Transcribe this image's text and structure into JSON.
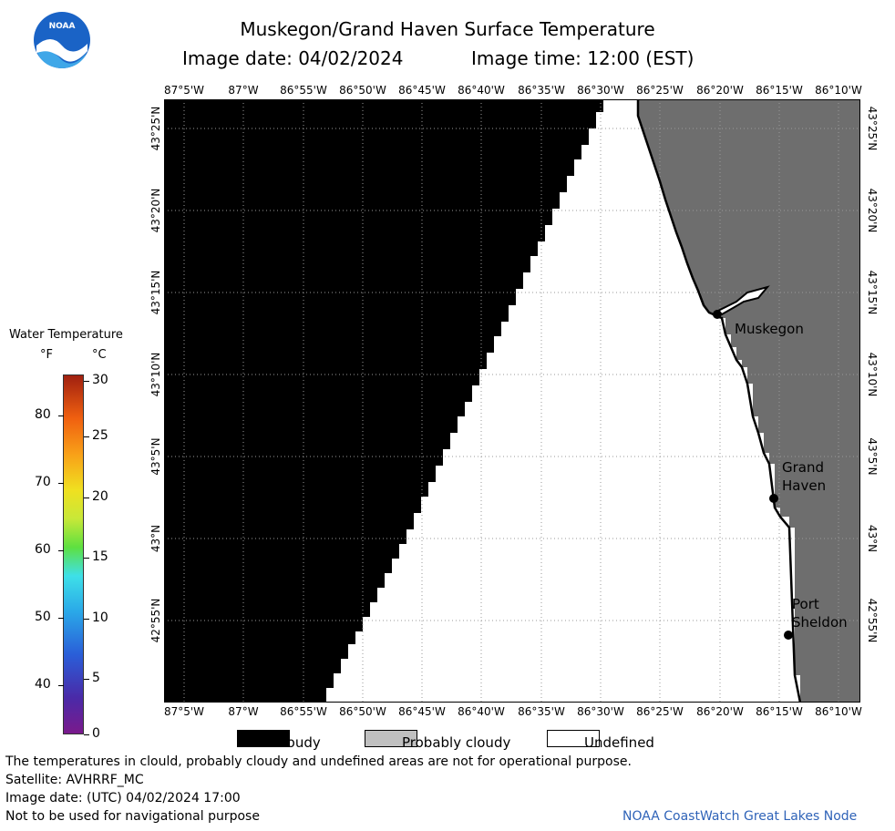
{
  "header": {
    "title": "Muskegon/Grand Haven Surface Temperature",
    "image_date": "Image date: 04/02/2024",
    "image_time": "Image time: 12:00 (EST)"
  },
  "logo": {
    "text": "NOAA"
  },
  "map": {
    "lon_labels": [
      "87°5'W",
      "87°W",
      "86°55'W",
      "86°50'W",
      "86°45'W",
      "86°40'W",
      "86°35'W",
      "86°30'W",
      "86°25'W",
      "86°20'W",
      "86°15'W",
      "86°10'W"
    ],
    "lat_labels": [
      "43°25'N",
      "43°20'N",
      "43°15'N",
      "43°10'N",
      "43°5'N",
      "43°N",
      "42°55'N"
    ],
    "cities": [
      {
        "name": "Muskegon",
        "lines": [
          "Muskegon"
        ]
      },
      {
        "name": "Grand Haven",
        "lines": [
          "Grand",
          "Haven"
        ]
      },
      {
        "name": "Port Sheldon",
        "lines": [
          "Port",
          "Sheldon"
        ]
      }
    ],
    "colors": {
      "cloudy": "#000000",
      "land": "#6e6e6e",
      "undefined": "#ffffff",
      "grid": "#9a9a9a"
    }
  },
  "legend": {
    "title": "Water Temperature",
    "unit_f": "°F",
    "unit_c": "°C",
    "f_ticks": [
      "80",
      "70",
      "60",
      "50",
      "40"
    ],
    "c_ticks": [
      "30",
      "25",
      "20",
      "15",
      "10",
      "5",
      "0"
    ]
  },
  "key": {
    "cloudy": "Cloudy",
    "probably_cloudy": "Probably cloudy",
    "undefined": "Undefined",
    "colors": {
      "cloudy": "#000000",
      "probably_cloudy": "#c0c0c0",
      "undefined": "#ffffff"
    }
  },
  "footer": {
    "note": "The temperatures in clould, probably cloudy and undefined areas are not for operational purpose.",
    "satellite": "Satellite: AVHRRF_MC",
    "utc_date": "Image date: (UTC) 04/02/2024  17:00",
    "nav_warning": "Not to be used for navigational purpose",
    "credit": "NOAA CoastWatch Great Lakes Node"
  }
}
